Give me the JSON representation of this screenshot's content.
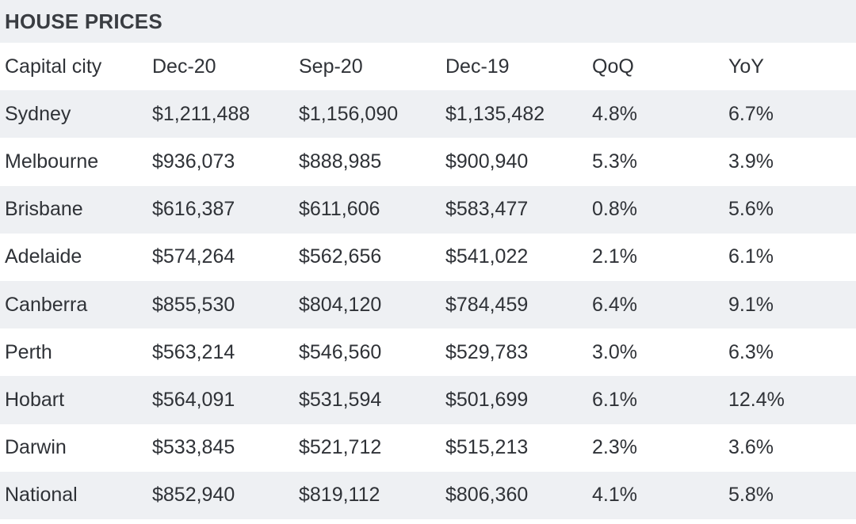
{
  "title": "HOUSE PRICES",
  "columns": [
    "Capital city",
    "Dec-20",
    "Sep-20",
    "Dec-19",
    "QoQ",
    "YoY"
  ],
  "rows": [
    [
      "Sydney",
      "$1,211,488",
      "$1,156,090",
      "$1,135,482",
      "4.8%",
      "6.7%"
    ],
    [
      "Melbourne",
      "$936,073",
      "$888,985",
      "$900,940",
      "5.3%",
      "3.9%"
    ],
    [
      "Brisbane",
      "$616,387",
      "$611,606",
      "$583,477",
      "0.8%",
      "5.6%"
    ],
    [
      "Adelaide",
      "$574,264",
      "$562,656",
      "$541,022",
      "2.1%",
      "6.1%"
    ],
    [
      "Canberra",
      "$855,530",
      "$804,120",
      "$784,459",
      "6.4%",
      "9.1%"
    ],
    [
      "Perth",
      "$563,214",
      "$546,560",
      "$529,783",
      "3.0%",
      "6.3%"
    ],
    [
      "Hobart",
      "$564,091",
      "$531,594",
      "$501,699",
      "6.1%",
      "12.4%"
    ],
    [
      "Darwin",
      "$533,845",
      "$521,712",
      "$515,213",
      "2.3%",
      "3.6%"
    ],
    [
      "National",
      "$852,940",
      "$819,112",
      "$806,360",
      "4.1%",
      "5.8%"
    ]
  ],
  "colors": {
    "shaded_row": "#eef0f3",
    "plain_row": "#ffffff",
    "text": "#2f3237"
  }
}
